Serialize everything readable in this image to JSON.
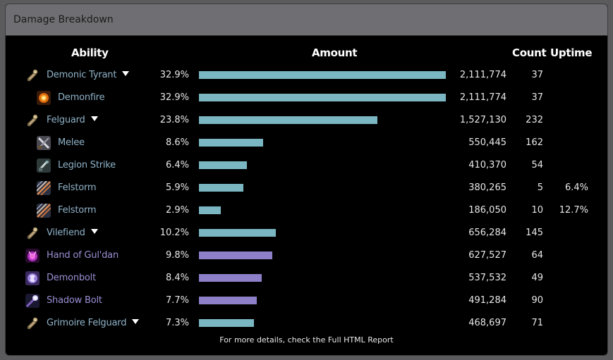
{
  "panel": {
    "title": "Damage Breakdown"
  },
  "columns": {
    "ability": "Ability",
    "amount": "Amount",
    "count": "Count",
    "uptime": "Uptime"
  },
  "colors": {
    "pet": "#7ab7c2",
    "spell": "#8e7fc9",
    "pet_text": "#8fb3c9",
    "spell_text": "#9b8fd3"
  },
  "rows": [
    {
      "name": "Demonic Tyrant",
      "icon": "pet-whistle-icon",
      "kind": "pet",
      "level": 0,
      "expandable": true,
      "pct": "32.9%",
      "fraction": 1.0,
      "amount": "2,111,774",
      "count": "37",
      "uptime": ""
    },
    {
      "name": "Demonfire",
      "icon": "demonfire-icon",
      "kind": "pet",
      "level": 1,
      "expandable": false,
      "pct": "32.9%",
      "fraction": 1.0,
      "amount": "2,111,774",
      "count": "37",
      "uptime": ""
    },
    {
      "name": "Felguard",
      "icon": "pet-whistle-icon",
      "kind": "pet",
      "level": 0,
      "expandable": true,
      "pct": "23.8%",
      "fraction": 0.723,
      "amount": "1,527,130",
      "count": "232",
      "uptime": ""
    },
    {
      "name": "Melee",
      "icon": "melee-icon",
      "kind": "pet",
      "level": 1,
      "expandable": false,
      "pct": "8.6%",
      "fraction": 0.261,
      "amount": "550,445",
      "count": "162",
      "uptime": ""
    },
    {
      "name": "Legion Strike",
      "icon": "legion-strike-icon",
      "kind": "pet",
      "level": 1,
      "expandable": false,
      "pct": "6.4%",
      "fraction": 0.194,
      "amount": "410,370",
      "count": "54",
      "uptime": ""
    },
    {
      "name": "Felstorm",
      "icon": "felstorm-icon",
      "kind": "pet",
      "level": 1,
      "expandable": false,
      "pct": "5.9%",
      "fraction": 0.179,
      "amount": "380,265",
      "count": "5",
      "uptime": "6.4%"
    },
    {
      "name": "Felstorm",
      "icon": "felstorm-icon",
      "kind": "pet",
      "level": 1,
      "expandable": false,
      "pct": "2.9%",
      "fraction": 0.088,
      "amount": "186,050",
      "count": "10",
      "uptime": "12.7%"
    },
    {
      "name": "Vilefiend",
      "icon": "pet-whistle-icon",
      "kind": "pet",
      "level": 0,
      "expandable": true,
      "pct": "10.2%",
      "fraction": 0.31,
      "amount": "656,284",
      "count": "145",
      "uptime": ""
    },
    {
      "name": "Hand of Gul'dan",
      "icon": "hand-of-guldan-icon",
      "kind": "spell",
      "level": 0,
      "expandable": false,
      "pct": "9.8%",
      "fraction": 0.297,
      "amount": "627,527",
      "count": "64",
      "uptime": ""
    },
    {
      "name": "Demonbolt",
      "icon": "demonbolt-icon",
      "kind": "spell",
      "level": 0,
      "expandable": false,
      "pct": "8.4%",
      "fraction": 0.255,
      "amount": "537,532",
      "count": "49",
      "uptime": ""
    },
    {
      "name": "Shadow Bolt",
      "icon": "shadow-bolt-icon",
      "kind": "spell",
      "level": 0,
      "expandable": false,
      "pct": "7.7%",
      "fraction": 0.233,
      "amount": "491,284",
      "count": "90",
      "uptime": ""
    },
    {
      "name": "Grimoire Felguard",
      "icon": "pet-whistle-icon",
      "kind": "pet",
      "level": 0,
      "expandable": true,
      "pct": "7.3%",
      "fraction": 0.222,
      "amount": "468,697",
      "count": "71",
      "uptime": ""
    }
  ],
  "footer": "For more details, check the Full HTML Report"
}
